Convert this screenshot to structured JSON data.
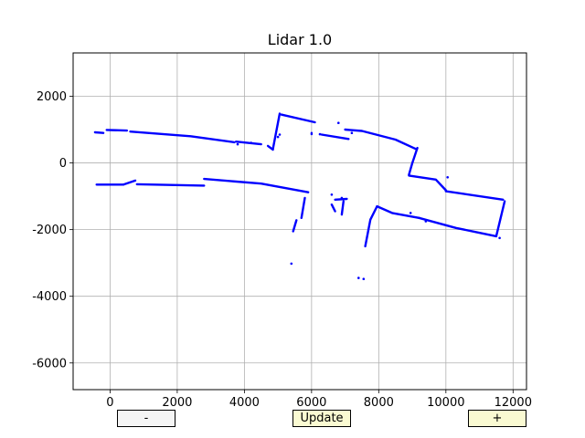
{
  "chart_data": {
    "type": "scatter",
    "title": "Lidar 1.0",
    "xlabel": "",
    "ylabel": "",
    "xlim": [
      -1100,
      12400
    ],
    "ylim": [
      -6800,
      3300
    ],
    "xticks": [
      0,
      2000,
      4000,
      6000,
      8000,
      10000,
      12000
    ],
    "yticks": [
      2000,
      0,
      -2000,
      -4000,
      -6000
    ],
    "grid": true,
    "point_color": "#0000ff",
    "segments": [
      [
        [
          -450,
          920
        ],
        [
          -200,
          900
        ]
      ],
      [
        [
          -100,
          990
        ],
        [
          500,
          970
        ]
      ],
      [
        [
          600,
          940
        ],
        [
          2400,
          800
        ],
        [
          3700,
          620
        ]
      ],
      [
        [
          3750,
          640
        ],
        [
          4500,
          560
        ]
      ],
      [
        [
          4700,
          510
        ],
        [
          4850,
          400
        ]
      ],
      [
        [
          4850,
          420
        ],
        [
          5050,
          1480
        ]
      ],
      [
        [
          5100,
          1450
        ],
        [
          6100,
          1220
        ]
      ],
      [
        [
          6000,
          900
        ],
        [
          6000,
          860
        ]
      ],
      [
        [
          6300,
          850
        ],
        [
          7100,
          720
        ]
      ],
      [
        [
          7000,
          1000
        ],
        [
          7500,
          960
        ],
        [
          8500,
          700
        ],
        [
          9100,
          420
        ]
      ],
      [
        [
          9150,
          450
        ],
        [
          9000,
          0
        ],
        [
          8900,
          -350
        ]
      ],
      [
        [
          8900,
          -380
        ],
        [
          9700,
          -500
        ],
        [
          10000,
          -820
        ]
      ],
      [
        [
          10000,
          -850
        ],
        [
          11700,
          -1100
        ]
      ],
      [
        [
          11750,
          -1150
        ],
        [
          11500,
          -2200
        ]
      ],
      [
        [
          11500,
          -2200
        ],
        [
          10300,
          -1950
        ],
        [
          9200,
          -1650
        ]
      ],
      [
        [
          9200,
          -1650
        ],
        [
          8400,
          -1500
        ],
        [
          7950,
          -1300
        ]
      ],
      [
        [
          7950,
          -1300
        ],
        [
          7750,
          -1700
        ],
        [
          7600,
          -2500
        ]
      ],
      [
        [
          -400,
          -650
        ],
        [
          400,
          -650
        ]
      ],
      [
        [
          400,
          -650
        ],
        [
          750,
          -530
        ]
      ],
      [
        [
          800,
          -640
        ],
        [
          2800,
          -680
        ]
      ],
      [
        [
          2800,
          -480
        ],
        [
          4500,
          -620
        ],
        [
          5900,
          -880
        ]
      ],
      [
        [
          5800,
          -1050
        ],
        [
          5700,
          -1650
        ]
      ],
      [
        [
          5550,
          -1720
        ],
        [
          5450,
          -2050
        ]
      ],
      [
        [
          6600,
          -1250
        ],
        [
          6700,
          -1450
        ]
      ],
      [
        [
          6950,
          -1150
        ],
        [
          6900,
          -1550
        ]
      ],
      [
        [
          6700,
          -1100
        ],
        [
          7050,
          -1080
        ]
      ]
    ],
    "points": [
      [
        3800,
        560
      ],
      [
        5050,
        850
      ],
      [
        5000,
        780
      ],
      [
        6250,
        860
      ],
      [
        6800,
        1200
      ],
      [
        10050,
        -430
      ],
      [
        5400,
        -3020
      ],
      [
        7400,
        -3450
      ],
      [
        7550,
        -3480
      ],
      [
        6900,
        -1050
      ],
      [
        6600,
        -950
      ],
      [
        4200,
        600
      ],
      [
        8950,
        -1500
      ],
      [
        9400,
        -1750
      ],
      [
        11600,
        -2250
      ],
      [
        7200,
        900
      ]
    ]
  },
  "controls": {
    "minus_label": "-",
    "update_label": "Update",
    "plus_label": "+",
    "minus_color": "#f5f5f5",
    "update_color": "#fafad2",
    "plus_color": "#fafad2"
  }
}
